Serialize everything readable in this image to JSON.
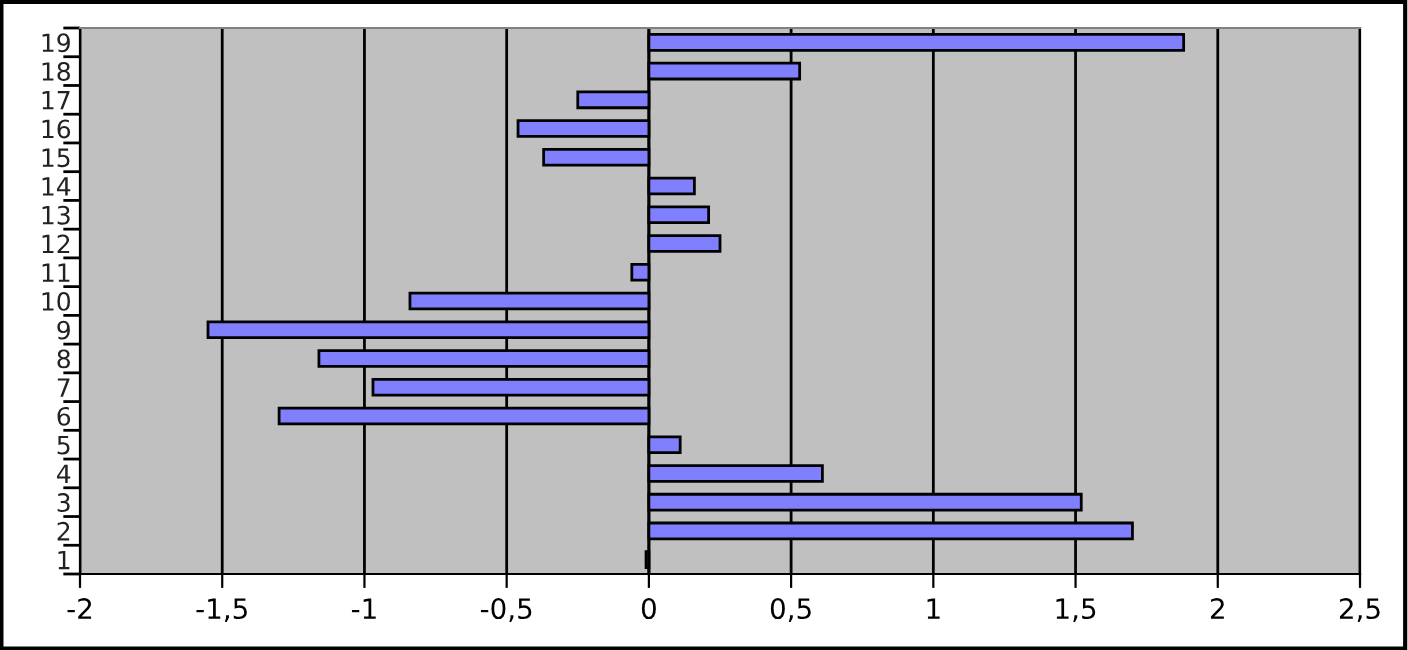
{
  "chart_data": {
    "type": "bar",
    "orientation": "horizontal",
    "categories": [
      "19",
      "18",
      "17",
      "16",
      "15",
      "14",
      "13",
      "12",
      "11",
      "10",
      "9",
      "8",
      "7",
      "6",
      "5",
      "4",
      "3",
      "2",
      "1"
    ],
    "values": [
      1.88,
      0.53,
      -0.25,
      -0.46,
      -0.37,
      0.16,
      0.21,
      0.25,
      -0.06,
      -0.84,
      -1.55,
      -1.16,
      -0.97,
      -1.3,
      0.11,
      0.61,
      1.52,
      1.7,
      -0.01
    ],
    "color": "#8080ff",
    "xlim": [
      -2,
      2.5
    ],
    "xticks": [
      {
        "value": -2,
        "label": "-2"
      },
      {
        "value": -1.5,
        "label": "-1,5"
      },
      {
        "value": -1,
        "label": "-1"
      },
      {
        "value": -0.5,
        "label": "-0,5"
      },
      0,
      {
        "value": 0.5,
        "label": "0,5"
      },
      1,
      {
        "value": 1.5,
        "label": "1,5"
      },
      2,
      {
        "value": 2.5,
        "label": "2,5"
      }
    ],
    "grid": "x"
  }
}
